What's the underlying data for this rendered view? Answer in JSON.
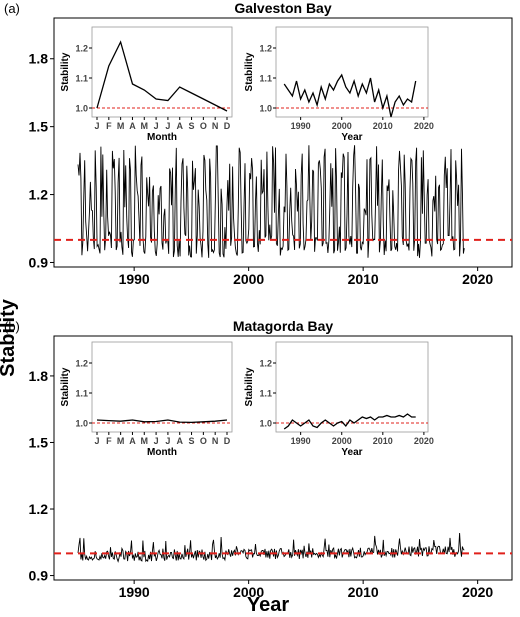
{
  "figure": {
    "ylabel": "Stability",
    "xlabel": "Year"
  },
  "chart_data": [
    {
      "panel": "(a)",
      "title": "Galveston Bay",
      "type": "line",
      "xlim": [
        1983,
        2023
      ],
      "ylim": [
        0.88,
        1.98
      ],
      "yticks": [
        0.9,
        1.2,
        1.5,
        1.8
      ],
      "ytick_labels": [
        "0.9",
        "1.2",
        "1.5",
        "1.8"
      ],
      "xticks": [
        1990,
        2000,
        2010,
        2020
      ],
      "reference_line": 1.0,
      "reference_color": "#e0201b",
      "series_color": "#000000",
      "series_generator": {
        "start": 1985.1,
        "end": 2018.9,
        "step": 0.0833,
        "pattern": "seasonal-spiky",
        "peak_range": [
          1.1,
          1.42
        ],
        "base_range": [
          0.92,
          1.02
        ]
      },
      "insets": [
        {
          "type": "line",
          "xlabel": "Month",
          "ylabel": "Stability",
          "x": [
            "J",
            "F",
            "M",
            "A",
            "M",
            "J",
            "J",
            "A",
            "S",
            "O",
            "N",
            "D"
          ],
          "values": [
            1.0,
            1.14,
            1.22,
            1.08,
            1.06,
            1.03,
            1.025,
            1.07,
            1.05,
            1.03,
            1.01,
            0.99
          ],
          "ylim": [
            0.97,
            1.27
          ],
          "yticks": [
            1.0,
            1.1,
            1.2
          ],
          "ytick_labels": [
            "1.0",
            "1.1",
            "1.2"
          ],
          "reference_line": 1.0
        },
        {
          "type": "line",
          "xlabel": "Year",
          "ylabel": "Stability",
          "xticks": [
            1990,
            2000,
            2010,
            2020
          ],
          "x": [
            1986,
            1987,
            1988,
            1989,
            1990,
            1991,
            1992,
            1993,
            1994,
            1995,
            1996,
            1997,
            1998,
            1999,
            2000,
            2001,
            2002,
            2003,
            2004,
            2005,
            2006,
            2007,
            2008,
            2009,
            2010,
            2011,
            2012,
            2013,
            2014,
            2015,
            2016,
            2017,
            2018
          ],
          "values": [
            1.08,
            1.06,
            1.04,
            1.09,
            1.03,
            1.06,
            1.02,
            1.05,
            1.01,
            1.07,
            1.03,
            1.08,
            1.06,
            1.09,
            1.11,
            1.07,
            1.05,
            1.09,
            1.04,
            1.08,
            1.05,
            1.1,
            1.02,
            1.06,
            1.0,
            1.04,
            0.97,
            1.02,
            1.04,
            1.01,
            1.03,
            1.02,
            1.09
          ],
          "xlim": [
            1984,
            2021
          ],
          "ylim": [
            0.97,
            1.27
          ],
          "yticks": [
            1.0,
            1.1,
            1.2
          ],
          "ytick_labels": [
            "1.0",
            "1.1",
            "1.2"
          ],
          "reference_line": 1.0
        }
      ]
    },
    {
      "panel": "(b)",
      "title": "Matagorda Bay",
      "type": "line",
      "xlim": [
        1983,
        2023
      ],
      "ylim": [
        0.88,
        1.98
      ],
      "yticks": [
        0.9,
        1.2,
        1.5,
        1.8
      ],
      "ytick_labels": [
        "0.9",
        "1.2",
        "1.5",
        "1.8"
      ],
      "xticks": [
        1990,
        2000,
        2010,
        2020
      ],
      "reference_line": 1.0,
      "reference_color": "#e0201b",
      "series_color": "#000000",
      "series_generator": {
        "start": 1985.1,
        "end": 2018.9,
        "step": 0.0833,
        "pattern": "low-noise",
        "peak_range": [
          1.0,
          1.07
        ],
        "base_range": [
          0.96,
          1.01
        ]
      },
      "insets": [
        {
          "type": "line",
          "xlabel": "Month",
          "ylabel": "Stability",
          "x": [
            "J",
            "F",
            "M",
            "A",
            "M",
            "J",
            "J",
            "A",
            "S",
            "O",
            "N",
            "D"
          ],
          "values": [
            1.01,
            1.008,
            1.006,
            1.01,
            1.004,
            1.005,
            1.01,
            1.003,
            1.002,
            1.004,
            1.006,
            1.01
          ],
          "ylim": [
            0.97,
            1.27
          ],
          "yticks": [
            1.0,
            1.1,
            1.2
          ],
          "ytick_labels": [
            "1.0",
            "1.1",
            "1.2"
          ],
          "reference_line": 1.0
        },
        {
          "type": "line",
          "xlabel": "Year",
          "ylabel": "Stability",
          "xticks": [
            1990,
            2000,
            2010,
            2020
          ],
          "x": [
            1986,
            1987,
            1988,
            1989,
            1990,
            1991,
            1992,
            1993,
            1994,
            1995,
            1996,
            1997,
            1998,
            1999,
            2000,
            2001,
            2002,
            2003,
            2004,
            2005,
            2006,
            2007,
            2008,
            2009,
            2010,
            2011,
            2012,
            2013,
            2014,
            2015,
            2016,
            2017,
            2018
          ],
          "values": [
            0.98,
            0.99,
            1.01,
            1.0,
            0.99,
            1.0,
            1.01,
            0.99,
            0.985,
            1.0,
            1.01,
            1.0,
            0.99,
            1.0,
            1.005,
            0.99,
            1.01,
            1.0,
            1.01,
            1.02,
            1.015,
            1.02,
            1.01,
            1.02,
            1.02,
            1.025,
            1.02,
            1.02,
            1.025,
            1.02,
            1.03,
            1.02,
            1.02
          ],
          "xlim": [
            1984,
            2021
          ],
          "ylim": [
            0.97,
            1.27
          ],
          "yticks": [
            1.0,
            1.1,
            1.2
          ],
          "ytick_labels": [
            "1.0",
            "1.1",
            "1.2"
          ],
          "reference_line": 1.0
        }
      ]
    }
  ]
}
